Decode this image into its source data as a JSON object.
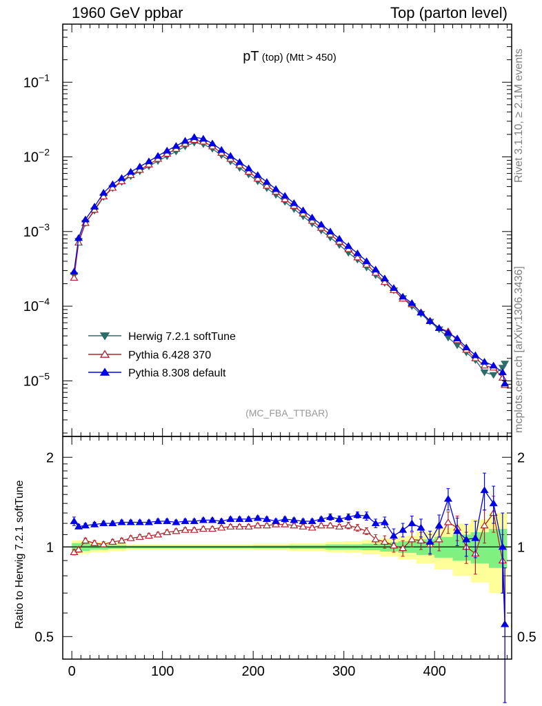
{
  "header": {
    "left": "1960 GeV ppbar",
    "right": "Top (parton level)"
  },
  "side_labels": {
    "rivet": "Rivet 3.1.10, ≥ 2.1M events",
    "mcplots": "mcplots.cern.ch [arXiv:1306.3436]"
  },
  "colors": {
    "herwig": "#2e6b6b",
    "pythia6": "#b0202a",
    "pythia8": "#0000e6",
    "band_inner": "#80f080",
    "band_outer": "#ffff99",
    "analysis": "#999999"
  },
  "chart_data": [
    {
      "type": "line",
      "panel": "main",
      "title_main": "pT",
      "title_small": "(top) (Mtt > 450)",
      "analysis_label": "(MC_FBA_TTBAR)",
      "yscale": "log",
      "xlim": [
        -10,
        485
      ],
      "ylim": [
        1.8e-06,
        0.6
      ],
      "x_ticklabels": [
        "0",
        "100",
        "200",
        "300",
        "400"
      ],
      "y_ticklabels": [
        {
          "base": "10",
          "exp": "−1"
        },
        {
          "base": "10",
          "exp": "−2"
        },
        {
          "base": "10",
          "exp": "−3"
        },
        {
          "base": "10",
          "exp": "−4"
        },
        {
          "base": "10",
          "exp": "−5"
        }
      ],
      "legend_position": "bottom-left",
      "series": [
        {
          "name": "Herwig 7.2.1 softTune",
          "marker": "triangle-down",
          "x": [
            2.5,
            7.5,
            15,
            25,
            35,
            45,
            55,
            65,
            75,
            85,
            95,
            105,
            115,
            125,
            135,
            145,
            155,
            165,
            175,
            185,
            195,
            205,
            215,
            225,
            235,
            245,
            255,
            265,
            275,
            285,
            295,
            305,
            315,
            325,
            335,
            345,
            355,
            365,
            375,
            385,
            395,
            405,
            415,
            425,
            435,
            445,
            455,
            465,
            475,
            477.5
          ],
          "y": [
            0.00026,
            0.00075,
            0.0013,
            0.0019,
            0.0029,
            0.0038,
            0.0046,
            0.0055,
            0.0064,
            0.0075,
            0.0088,
            0.0102,
            0.0118,
            0.0138,
            0.0155,
            0.0148,
            0.0128,
            0.0105,
            0.0087,
            0.0071,
            0.0058,
            0.0047,
            0.0038,
            0.0031,
            0.0025,
            0.002,
            0.0016,
            0.00128,
            0.00103,
            0.00083,
            0.00066,
            0.00052,
            0.00042,
            0.00033,
            0.00026,
            0.000205,
            0.000163,
            0.000128,
            0.0001,
            7.9e-05,
            6.2e-05,
            4.9e-05,
            3.8e-05,
            3e-05,
            2.4e-05,
            1.9e-05,
            1.3e-05,
            1.2e-05,
            1.5e-05,
            1.7e-05
          ]
        },
        {
          "name": "Pythia 6.428 370",
          "marker": "triangle-up-open",
          "x": [
            2.5,
            7.5,
            15,
            25,
            35,
            45,
            55,
            65,
            75,
            85,
            95,
            105,
            115,
            125,
            135,
            145,
            155,
            165,
            175,
            185,
            195,
            205,
            215,
            225,
            235,
            245,
            255,
            265,
            275,
            285,
            295,
            305,
            315,
            325,
            335,
            345,
            355,
            365,
            375,
            385,
            395,
            405,
            415,
            425,
            435,
            445,
            455,
            465,
            475,
            477.5
          ],
          "y": [
            0.00024,
            0.00071,
            0.0013,
            0.00195,
            0.00295,
            0.00385,
            0.0047,
            0.0057,
            0.0067,
            0.0079,
            0.0094,
            0.011,
            0.0128,
            0.015,
            0.0168,
            0.016,
            0.0138,
            0.0113,
            0.0094,
            0.0077,
            0.0063,
            0.0051,
            0.0041,
            0.0034,
            0.0027,
            0.0022,
            0.00174,
            0.00139,
            0.00112,
            0.00091,
            0.00073,
            0.00058,
            0.00045,
            0.00036,
            0.00028,
            0.00021,
            0.000164,
            0.000126,
            0.000106,
            8.3e-05,
            6.4e-05,
            5.1e-05,
            4.6e-05,
            3.5e-05,
            2.6e-05,
            2e-05,
            1.6e-05,
            1.5e-05,
            1.1e-05,
            8.8e-06
          ]
        },
        {
          "name": "Pythia 8.308 default",
          "marker": "triangle-up",
          "x": [
            2.5,
            7.5,
            15,
            25,
            35,
            45,
            55,
            65,
            75,
            85,
            95,
            105,
            115,
            125,
            135,
            145,
            155,
            165,
            175,
            185,
            195,
            205,
            215,
            225,
            235,
            245,
            255,
            265,
            275,
            285,
            295,
            305,
            315,
            325,
            335,
            345,
            355,
            365,
            375,
            385,
            395,
            405,
            415,
            425,
            435,
            445,
            455,
            465,
            475,
            477.5
          ],
          "y": [
            0.00029,
            0.00082,
            0.00145,
            0.00215,
            0.0033,
            0.0043,
            0.0052,
            0.0063,
            0.0074,
            0.0087,
            0.0103,
            0.0121,
            0.014,
            0.0164,
            0.0184,
            0.0175,
            0.0151,
            0.0124,
            0.0103,
            0.0085,
            0.007,
            0.0057,
            0.0046,
            0.0037,
            0.003,
            0.0024,
            0.00192,
            0.00154,
            0.00124,
            0.001,
            0.0008,
            0.00064,
            0.00051,
            0.0004,
            0.00031,
            0.000235,
            0.000175,
            0.000134,
            0.00011,
            8.2e-05,
            6.3e-05,
            5.1e-05,
            4.4e-05,
            3.7e-05,
            2.8e-05,
            2.2e-05,
            1.8e-05,
            1.6e-05,
            1.3e-05,
            9.2e-06
          ]
        }
      ]
    },
    {
      "type": "line",
      "panel": "ratio",
      "ylabel": "Ratio to Herwig 7.2.1 softTune",
      "xlim": [
        -10,
        485
      ],
      "ylim": [
        0.42,
        2.35
      ],
      "x_ticklabels": [
        "0",
        "100",
        "200",
        "300",
        "400"
      ],
      "y_ticklabels": [
        "2",
        "1",
        "0.5"
      ],
      "reference": 1.0,
      "band_x": [
        0,
        20,
        40,
        60,
        80,
        100,
        120,
        140,
        160,
        180,
        200,
        220,
        240,
        260,
        280,
        300,
        320,
        340,
        360,
        380,
        400,
        420,
        440,
        460,
        480
      ],
      "band_inner": [
        0.03,
        0.02,
        0.015,
        0.01,
        0.01,
        0.01,
        0.01,
        0.01,
        0.01,
        0.01,
        0.012,
        0.012,
        0.015,
        0.015,
        0.02,
        0.02,
        0.025,
        0.035,
        0.045,
        0.06,
        0.08,
        0.1,
        0.12,
        0.15,
        0.15
      ],
      "band_outer": [
        0.05,
        0.04,
        0.03,
        0.02,
        0.02,
        0.02,
        0.02,
        0.02,
        0.02,
        0.02,
        0.025,
        0.025,
        0.03,
        0.03,
        0.04,
        0.045,
        0.055,
        0.07,
        0.09,
        0.12,
        0.16,
        0.2,
        0.24,
        0.3,
        0.32
      ],
      "series": [
        {
          "name": "Pythia 6.428 370",
          "x": [
            2.5,
            7.5,
            15,
            25,
            35,
            45,
            55,
            65,
            75,
            85,
            95,
            105,
            115,
            125,
            135,
            145,
            155,
            165,
            175,
            185,
            195,
            205,
            215,
            225,
            235,
            245,
            255,
            265,
            275,
            285,
            295,
            305,
            315,
            325,
            335,
            345,
            355,
            365,
            375,
            385,
            395,
            405,
            415,
            425,
            435,
            445,
            455,
            465,
            475,
            477.5
          ],
          "y": [
            0.96,
            0.98,
            1.05,
            1.03,
            1.02,
            1.04,
            1.05,
            1.07,
            1.08,
            1.09,
            1.1,
            1.12,
            1.13,
            1.14,
            1.14,
            1.15,
            1.15,
            1.16,
            1.17,
            1.17,
            1.17,
            1.18,
            1.18,
            1.19,
            1.19,
            1.18,
            1.17,
            1.16,
            1.18,
            1.18,
            1.17,
            1.18,
            1.16,
            1.13,
            1.06,
            1.04,
            1.01,
            0.99,
            1.06,
            1.05,
            1.02,
            1.06,
            1.21,
            1.16,
            1.0,
            0.95,
            1.18,
            1.3,
            0.9,
            0.55
          ],
          "err": [
            0.02,
            0.02,
            0.02,
            0.02,
            0.02,
            0.02,
            0.02,
            0.02,
            0.02,
            0.02,
            0.02,
            0.02,
            0.02,
            0.02,
            0.02,
            0.02,
            0.02,
            0.02,
            0.02,
            0.02,
            0.02,
            0.02,
            0.02,
            0.02,
            0.02,
            0.02,
            0.02,
            0.02,
            0.02,
            0.02,
            0.02,
            0.03,
            0.03,
            0.03,
            0.04,
            0.05,
            0.05,
            0.06,
            0.06,
            0.07,
            0.08,
            0.09,
            0.1,
            0.11,
            0.12,
            0.14,
            0.15,
            0.18,
            0.2,
            0.25
          ]
        },
        {
          "name": "Pythia 8.308 default",
          "x": [
            2.5,
            7.5,
            15,
            25,
            35,
            45,
            55,
            65,
            75,
            85,
            95,
            105,
            115,
            125,
            135,
            145,
            155,
            165,
            175,
            185,
            195,
            205,
            215,
            225,
            235,
            245,
            255,
            265,
            275,
            285,
            295,
            305,
            315,
            325,
            335,
            345,
            355,
            365,
            375,
            385,
            395,
            405,
            415,
            425,
            435,
            445,
            455,
            465,
            475,
            477.5
          ],
          "y": [
            1.22,
            1.17,
            1.18,
            1.19,
            1.2,
            1.2,
            1.21,
            1.21,
            1.21,
            1.21,
            1.22,
            1.22,
            1.21,
            1.22,
            1.22,
            1.23,
            1.23,
            1.22,
            1.24,
            1.24,
            1.24,
            1.25,
            1.24,
            1.22,
            1.24,
            1.23,
            1.22,
            1.22,
            1.24,
            1.26,
            1.24,
            1.26,
            1.28,
            1.27,
            1.2,
            1.21,
            1.09,
            1.14,
            1.2,
            1.16,
            1.04,
            1.18,
            1.45,
            1.13,
            1.06,
            1.07,
            1.55,
            1.4,
            1.0,
            0.55
          ],
          "err": [
            0.04,
            0.02,
            0.02,
            0.02,
            0.02,
            0.02,
            0.02,
            0.02,
            0.02,
            0.02,
            0.02,
            0.02,
            0.02,
            0.02,
            0.02,
            0.02,
            0.02,
            0.02,
            0.02,
            0.02,
            0.02,
            0.02,
            0.02,
            0.02,
            0.02,
            0.02,
            0.02,
            0.02,
            0.02,
            0.03,
            0.03,
            0.03,
            0.03,
            0.04,
            0.04,
            0.05,
            0.06,
            0.06,
            0.07,
            0.08,
            0.09,
            0.1,
            0.12,
            0.12,
            0.13,
            0.15,
            0.22,
            0.2,
            0.3,
            0.3
          ]
        }
      ]
    }
  ]
}
